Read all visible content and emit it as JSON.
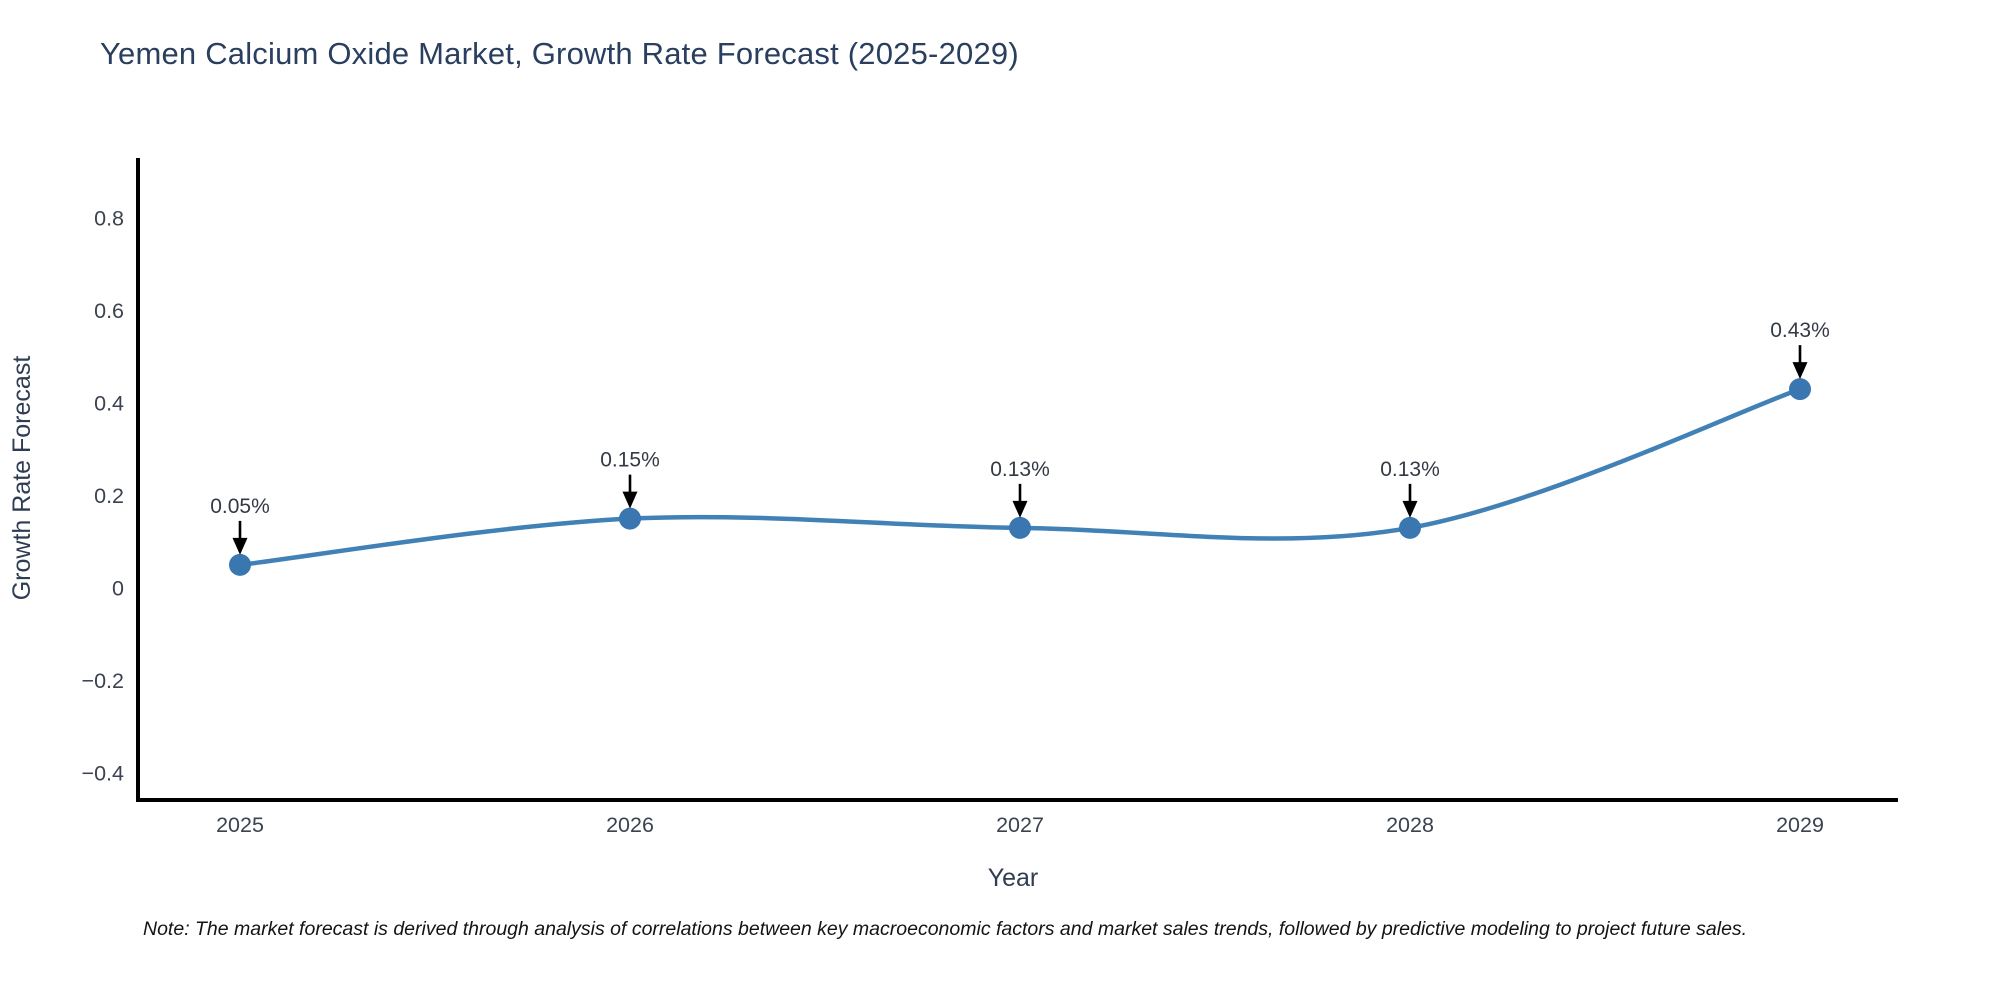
{
  "title": "Yemen Calcium Oxide Market, Growth Rate Forecast (2025-2029)",
  "note": "Note: The market forecast is derived through analysis of correlations between key macroeconomic factors and market sales trends, followed by predictive modeling to project future sales.",
  "chart_data": {
    "type": "line",
    "title": "Yemen Calcium Oxide Market, Growth Rate Forecast (2025-2029)",
    "xlabel": "Year",
    "ylabel": "Growth Rate Forecast",
    "x": [
      2025,
      2026,
      2027,
      2028,
      2029
    ],
    "series": [
      {
        "name": "Growth Rate Forecast",
        "values": [
          0.05,
          0.15,
          0.13,
          0.13,
          0.43
        ],
        "labels": [
          "0.05%",
          "0.15%",
          "0.13%",
          "0.13%",
          "0.43%"
        ]
      }
    ],
    "x_ticks": [
      2025,
      2026,
      2027,
      2028,
      2029
    ],
    "y_ticks": [
      -0.4,
      -0.2,
      0,
      0.2,
      0.4,
      0.6,
      0.8
    ],
    "ylim": [
      -0.46,
      0.93
    ],
    "xlim": [
      2024.74,
      2029.25
    ],
    "line_shape": "spline",
    "grid": false,
    "legend_position": "none",
    "colors": {
      "line": "#4181b6",
      "marker": "#3a76b0",
      "axis": "#000000",
      "title_text": "#2a3f5f",
      "annotation_arrow": "#000000",
      "background": "#ffffff"
    }
  }
}
